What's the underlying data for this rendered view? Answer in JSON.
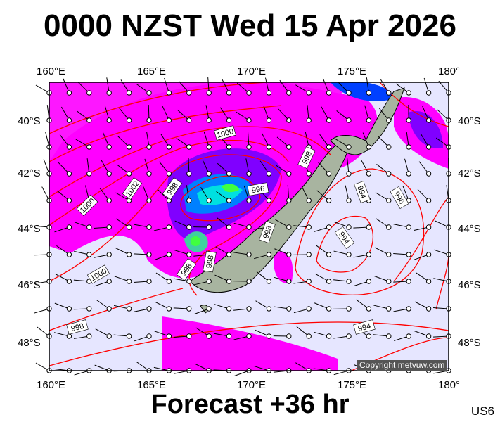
{
  "title": "0000 NZST Wed 15 Apr 2026",
  "footer": "Forecast +36 hr",
  "code": "US6",
  "copyright": "Copyright metvuw.com",
  "lon_labels": [
    "160°E",
    "165°E",
    "170°E",
    "175°E",
    "180°"
  ],
  "lat_labels": [
    "40°S",
    "42°S",
    "44°S",
    "46°S",
    "48°S"
  ],
  "isobar_labels": [
    "1000",
    "1002",
    "998",
    "996",
    "998",
    "998",
    "998",
    "998",
    "1000",
    "998",
    "1000",
    "994",
    "996",
    "994",
    "994"
  ],
  "colors": {
    "sea": "#e6e6ff",
    "rain_light": "#ff00ff",
    "rain_mid": "#8000ff",
    "rain_heavy": "#0040ff",
    "rain_peak": "#40ff40",
    "isobar": "#ff0000",
    "land": "#a8b4a0"
  }
}
